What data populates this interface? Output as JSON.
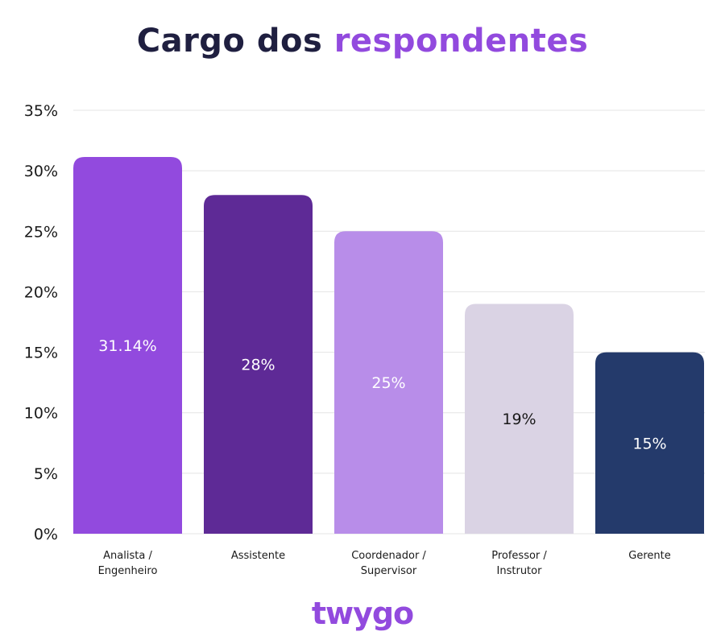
{
  "chart_data": {
    "type": "bar",
    "title_part1": "Cargo dos",
    "title_part2": "respondentes",
    "categories": [
      [
        "Analista /",
        "Engenheiro"
      ],
      [
        "Assistente"
      ],
      [
        "Coordenador /",
        "Supervisor"
      ],
      [
        "Professor /",
        "Instrutor"
      ],
      [
        "Gerente"
      ]
    ],
    "values": [
      31.14,
      28,
      25,
      19,
      15
    ],
    "data_labels": [
      "31.14%",
      "28%",
      "25%",
      "19%",
      "15%"
    ],
    "colors": [
      "#924ade",
      "#5e2a96",
      "#b88de9",
      "#dad3e4",
      "#243a6b"
    ],
    "label_colors": [
      "#ffffff",
      "#ffffff",
      "#ffffff",
      "#1a1a1a",
      "#ffffff"
    ],
    "ylim": [
      0,
      35
    ],
    "yticks": [
      "0%",
      "5%",
      "10%",
      "15%",
      "20%",
      "25%",
      "30%",
      "35%"
    ],
    "ytick_values": [
      0,
      5,
      10,
      15,
      20,
      25,
      30,
      35
    ],
    "grid": true,
    "xlabel": "",
    "ylabel": ""
  },
  "brand": {
    "logo": "twygo",
    "title_dark": "#1f1f40",
    "accent": "#924ade"
  }
}
